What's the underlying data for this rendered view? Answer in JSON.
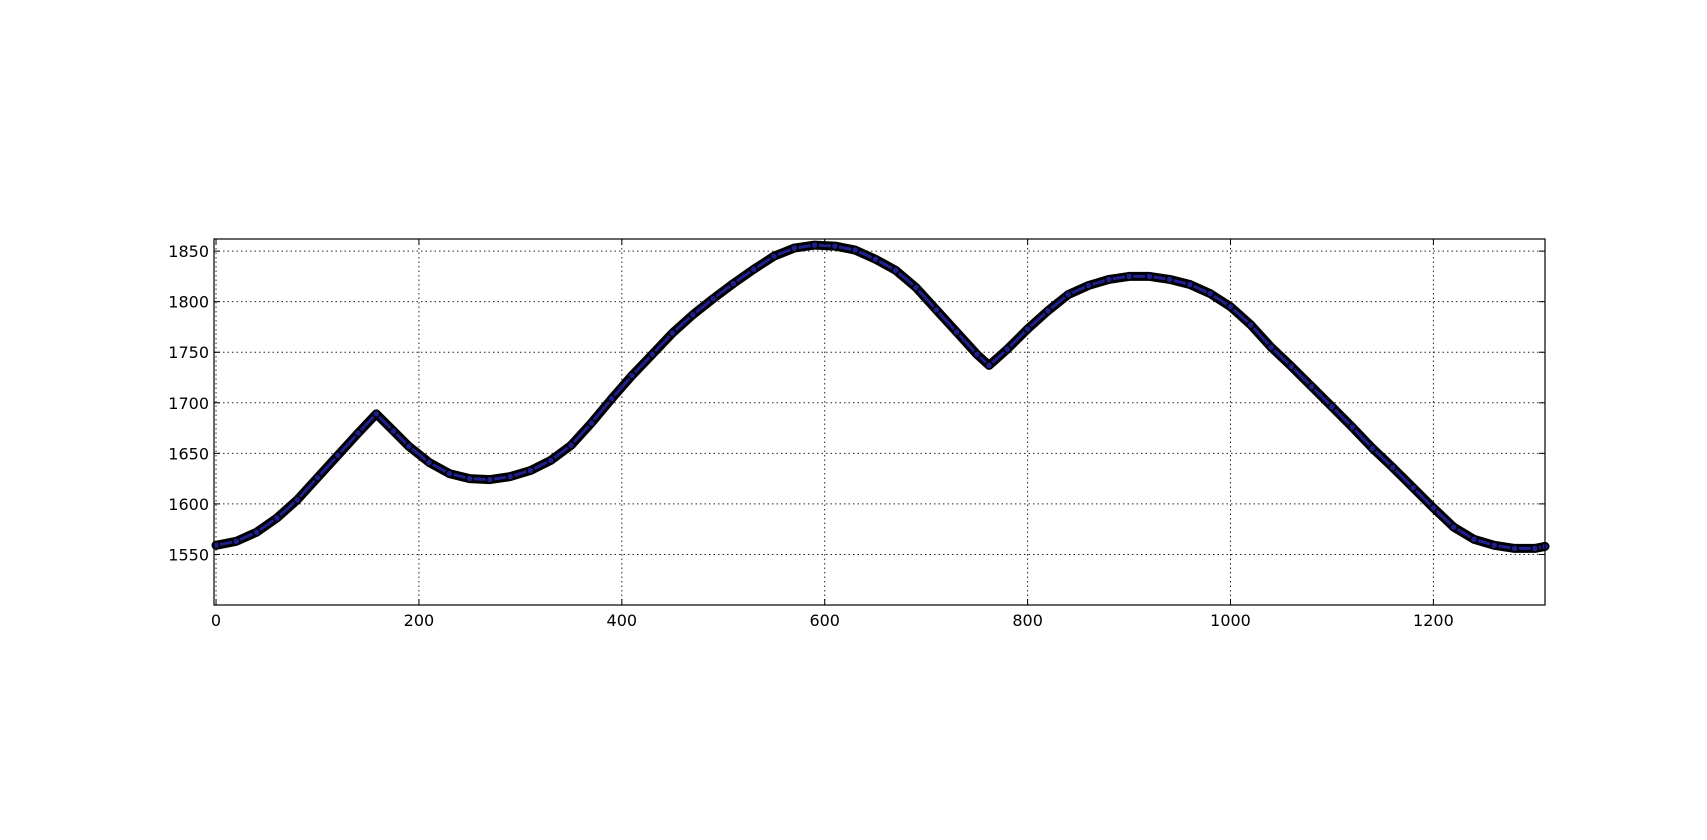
{
  "chart_data": {
    "type": "line",
    "title": "",
    "xlabel": "",
    "ylabel": "",
    "xlim": [
      -2,
      1310
    ],
    "ylim": [
      1500,
      1862
    ],
    "grid": true,
    "x_ticks": [
      0,
      200,
      400,
      600,
      800,
      1000,
      1200
    ],
    "y_ticks": [
      1550,
      1600,
      1650,
      1700,
      1750,
      1800,
      1850
    ],
    "x_tick_labels": [
      "0",
      "200",
      "400",
      "600",
      "800",
      "1000",
      "1200"
    ],
    "y_tick_labels": [
      "1550",
      "1600",
      "1650",
      "1700",
      "1750",
      "1800",
      "1850"
    ],
    "series": [
      {
        "color": "#000000",
        "marker_color": "#1f1f8f",
        "points": [
          [
            0,
            1559
          ],
          [
            20,
            1563
          ],
          [
            40,
            1572
          ],
          [
            60,
            1586
          ],
          [
            80,
            1604
          ],
          [
            100,
            1626
          ],
          [
            120,
            1648
          ],
          [
            140,
            1670
          ],
          [
            158,
            1689
          ],
          [
            175,
            1672
          ],
          [
            190,
            1657
          ],
          [
            210,
            1641
          ],
          [
            230,
            1630
          ],
          [
            250,
            1625
          ],
          [
            270,
            1624
          ],
          [
            290,
            1627
          ],
          [
            310,
            1633
          ],
          [
            330,
            1643
          ],
          [
            350,
            1658
          ],
          [
            370,
            1680
          ],
          [
            390,
            1704
          ],
          [
            410,
            1727
          ],
          [
            430,
            1748
          ],
          [
            450,
            1769
          ],
          [
            470,
            1787
          ],
          [
            490,
            1803
          ],
          [
            510,
            1818
          ],
          [
            530,
            1832
          ],
          [
            550,
            1845
          ],
          [
            570,
            1853
          ],
          [
            590,
            1856
          ],
          [
            610,
            1855
          ],
          [
            630,
            1851
          ],
          [
            650,
            1842
          ],
          [
            670,
            1831
          ],
          [
            690,
            1814
          ],
          [
            710,
            1792
          ],
          [
            730,
            1770
          ],
          [
            750,
            1748
          ],
          [
            762,
            1737
          ],
          [
            780,
            1753
          ],
          [
            800,
            1773
          ],
          [
            820,
            1791
          ],
          [
            840,
            1807
          ],
          [
            860,
            1816
          ],
          [
            880,
            1822
          ],
          [
            900,
            1825
          ],
          [
            920,
            1825
          ],
          [
            940,
            1822
          ],
          [
            960,
            1817
          ],
          [
            980,
            1808
          ],
          [
            1000,
            1795
          ],
          [
            1020,
            1777
          ],
          [
            1040,
            1755
          ],
          [
            1060,
            1736
          ],
          [
            1080,
            1716
          ],
          [
            1100,
            1696
          ],
          [
            1120,
            1676
          ],
          [
            1140,
            1655
          ],
          [
            1160,
            1636
          ],
          [
            1180,
            1616
          ],
          [
            1200,
            1596
          ],
          [
            1220,
            1577
          ],
          [
            1240,
            1565
          ],
          [
            1260,
            1559
          ],
          [
            1280,
            1556
          ],
          [
            1300,
            1556
          ],
          [
            1310,
            1558
          ]
        ]
      }
    ]
  }
}
